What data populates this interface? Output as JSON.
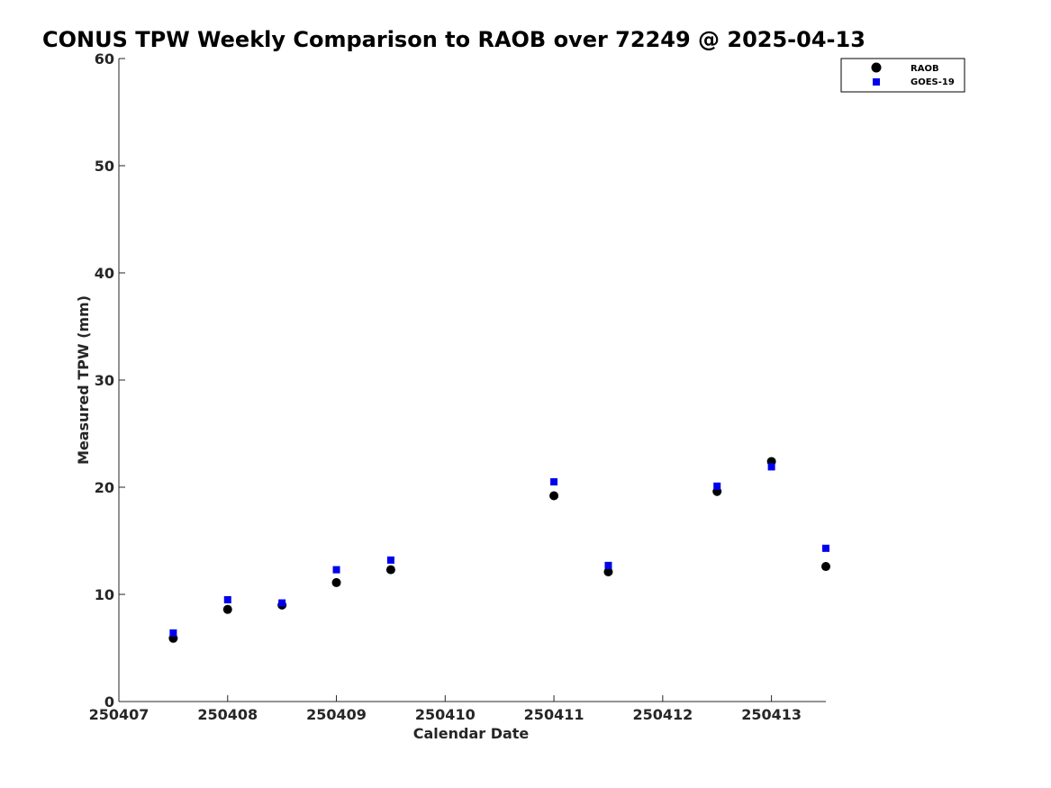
{
  "chart_data": {
    "type": "scatter",
    "title": "CONUS TPW Weekly Comparison to RAOB over 72249 @ 2025-04-13",
    "xlabel": "Calendar Date",
    "ylabel": "Measured TPW (mm)",
    "xlim": [
      250407,
      250413.5
    ],
    "ylim": [
      0,
      60
    ],
    "xticks": [
      250407,
      250408,
      250409,
      250410,
      250411,
      250412,
      250413
    ],
    "xtick_labels": [
      "250407",
      "250408",
      "250409",
      "250410",
      "250411",
      "250412",
      "250413"
    ],
    "yticks": [
      0,
      10,
      20,
      30,
      40,
      50,
      60
    ],
    "ytick_labels": [
      "0",
      "10",
      "20",
      "30",
      "40",
      "50",
      "60"
    ],
    "grid": false,
    "legend_position": "top-right",
    "series": [
      {
        "name": "RAOB",
        "marker": "circle",
        "color": "#000000",
        "x": [
          250407.5,
          250408,
          250408.5,
          250409,
          250409.5,
          250411,
          250411.5,
          250412.5,
          250413,
          250413.5
        ],
        "y": [
          5.9,
          8.6,
          9.0,
          11.1,
          12.3,
          19.2,
          12.1,
          19.6,
          22.4,
          12.6
        ]
      },
      {
        "name": "GOES-19",
        "marker": "square",
        "color": "#0000ee",
        "x": [
          250407.5,
          250408,
          250408.5,
          250409,
          250409.5,
          250411,
          250411.5,
          250412.5,
          250413,
          250413.5
        ],
        "y": [
          6.4,
          9.5,
          9.2,
          12.3,
          13.2,
          20.5,
          12.7,
          20.1,
          21.9,
          14.3
        ]
      }
    ]
  }
}
